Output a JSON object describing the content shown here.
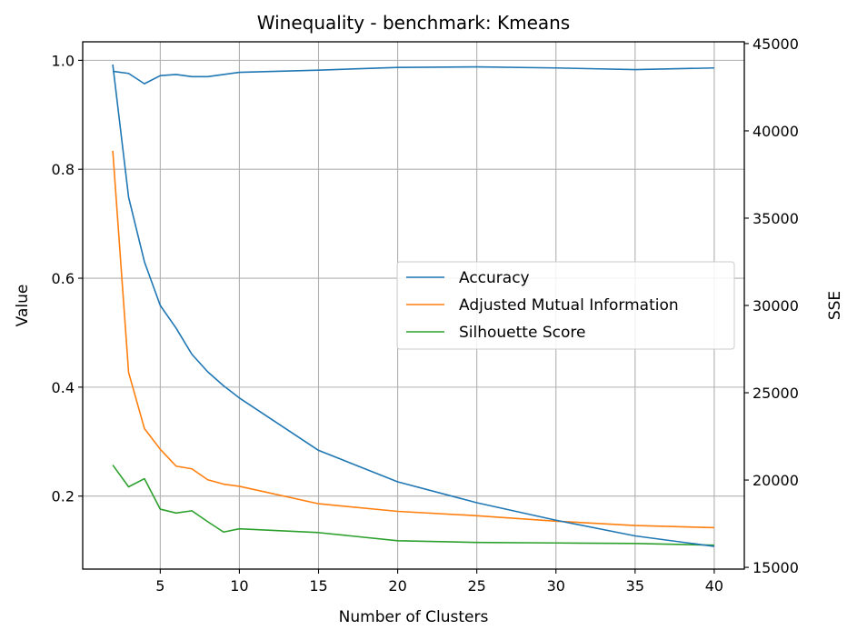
{
  "chart_data": {
    "type": "line",
    "title": "Winequality - benchmark: Kmeans",
    "xlabel": "Number of Clusters",
    "ylabel": "Value",
    "y2label": "SSE",
    "xlim": [
      0.1,
      41.9
    ],
    "ylim": [
      0.066,
      1.034
    ],
    "y2lim": [
      14900,
      45100
    ],
    "xticks": [
      5,
      10,
      15,
      20,
      25,
      30,
      35,
      40
    ],
    "yticks": [
      0.2,
      0.4,
      0.6,
      0.8,
      1.0
    ],
    "y2ticks": [
      15000,
      20000,
      25000,
      30000,
      35000,
      40000,
      45000
    ],
    "grid": true,
    "legend_position": "center-right",
    "series": [
      {
        "name": "Accuracy",
        "axis": "left",
        "color": "#1f77b4",
        "x": [
          2,
          3,
          4,
          5,
          6,
          7,
          8,
          9,
          10,
          15,
          20,
          25,
          30,
          35,
          40
        ],
        "values": [
          0.98,
          0.976,
          0.957,
          0.972,
          0.974,
          0.97,
          0.97,
          0.974,
          0.978,
          0.982,
          0.987,
          0.988,
          0.986,
          0.983,
          0.986
        ]
      },
      {
        "name": "Adjusted Mutual Information",
        "axis": "left",
        "color": "#ff7f0e",
        "x": [
          2,
          3,
          4,
          5,
          6,
          7,
          8,
          9,
          10,
          15,
          20,
          25,
          30,
          35,
          40
        ],
        "values": [
          0.834,
          0.427,
          0.324,
          0.286,
          0.255,
          0.25,
          0.23,
          0.222,
          0.218,
          0.186,
          0.172,
          0.164,
          0.154,
          0.146,
          0.142
        ]
      },
      {
        "name": "Silhouette Score",
        "axis": "left",
        "color": "#2ca02c",
        "x": [
          2,
          3,
          4,
          5,
          6,
          7,
          8,
          9,
          10,
          15,
          20,
          25,
          30,
          35,
          40
        ],
        "values": [
          0.257,
          0.217,
          0.232,
          0.176,
          0.169,
          0.173,
          0.153,
          0.134,
          0.14,
          0.133,
          0.118,
          0.115,
          0.114,
          0.113,
          0.11
        ]
      },
      {
        "name": "",
        "axis": "right",
        "color": "#1f77b4",
        "x": [
          2,
          3,
          4,
          5,
          6,
          7,
          8,
          9,
          10,
          15,
          20,
          25,
          30,
          35,
          40
        ],
        "values": [
          43800,
          36200,
          32500,
          30000,
          28700,
          27200,
          26200,
          25400,
          24700,
          21700,
          19900,
          18700,
          17700,
          16800,
          16200
        ]
      }
    ]
  }
}
